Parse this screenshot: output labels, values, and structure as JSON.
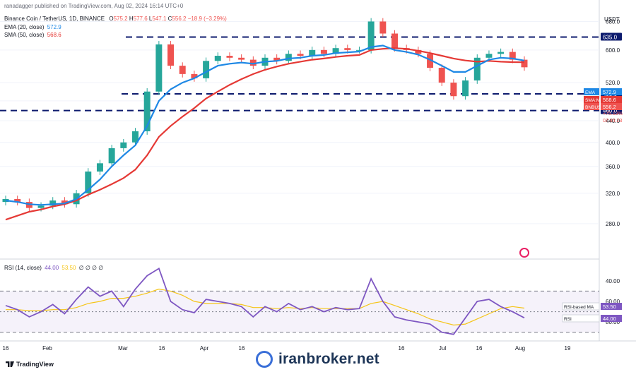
{
  "header": {
    "author_line": "ranadagger published on TradingView.com, Aug 02, 2024 16:14 UTC+0",
    "symbol": "Binance Coin / TetherUS, 1D, BINANCE",
    "ohlc": {
      "o_label": "O",
      "o": "575.2",
      "h_label": "H",
      "h": "577.6",
      "l_label": "L",
      "l": "547.1",
      "c_label": "C",
      "c": "556.2",
      "change": "−18.9 (−3.29%)"
    },
    "ema_label": "EMA (20, close)",
    "ema_value": "572.9",
    "sma_label": "SMA (50, close)",
    "sma_value": "568.6",
    "rsi_label": "RSI (14, close)",
    "rsi_value": "44.00",
    "rsi_ma_value": "53.50",
    "rsi_extra": "∅ ∅ ∅ ∅"
  },
  "currency": "USDT",
  "price_axis": {
    "ticks": [
      "680.0",
      "600.0",
      "520.0",
      "480.0",
      "440.0",
      "400.0",
      "360.0",
      "320.0",
      "280.0"
    ]
  },
  "level_tags": [
    "635.0",
    "495.0",
    "460.0"
  ],
  "right_tags": {
    "ema": {
      "label": "EMA",
      "value": "572.9",
      "color": "#1e88e5"
    },
    "sma": {
      "label": "SMA:MA",
      "value": "568.6",
      "color": "#e53935"
    },
    "symbol": {
      "label": "BNBUSDT",
      "value": "556.2",
      "color": "#ef5350",
      "change": "+75.13%",
      "countdown": "07:45:23"
    }
  },
  "rsi_axis": {
    "ticks": [
      "80.00",
      "60.00",
      "40.00"
    ],
    "tags": [
      {
        "label": "RSI-based MA",
        "value": "53.50"
      },
      {
        "label": "RSI",
        "value": "44.00"
      }
    ]
  },
  "time_axis": {
    "labels": [
      "16",
      "Feb",
      "Mar",
      "16",
      "Apr",
      "16",
      "16",
      "Jul",
      "16",
      "Aug",
      "19"
    ]
  },
  "footer": {
    "brand": "TradingView",
    "watermark": "iranbroker.net"
  },
  "colors": {
    "up": "#26a69a",
    "down": "#ef5350",
    "ema": "#1e88e5",
    "sma": "#e53935",
    "rsi": "#7e57c2",
    "rsi_ma": "#f5c518",
    "levels": "#0d1b6e"
  },
  "chart_data": [
    {
      "type": "candlestick",
      "title": "Binance Coin / TetherUS, 1D, BINANCE",
      "ylabel": "USDT",
      "ylim": [
        245,
        720
      ],
      "yticks": [
        280,
        320,
        360,
        400,
        440,
        480,
        520,
        600,
        680
      ],
      "horizontal_levels": [
        635,
        495,
        460
      ],
      "x": [
        "Jan-06",
        "Jan-10",
        "Jan-15",
        "Jan-20",
        "Jan-25",
        "Feb-01",
        "Feb-07",
        "Feb-14",
        "Feb-20",
        "Feb-26",
        "Mar-01",
        "Mar-05",
        "Mar-08",
        "Mar-12",
        "Mar-16",
        "Mar-20",
        "Mar-25",
        "Apr-01",
        "Apr-06",
        "Apr-10",
        "Apr-15",
        "Apr-20",
        "Apr-25",
        "May-01",
        "May-06",
        "May-10",
        "May-15",
        "May-20",
        "May-25",
        "Jun-01",
        "Jun-05",
        "Jun-08",
        "Jun-12",
        "Jun-17",
        "Jun-21",
        "Jun-25",
        "Jul-01",
        "Jul-05",
        "Jul-08",
        "Jul-12",
        "Jul-16",
        "Jul-20",
        "Jul-25",
        "Jul-29",
        "Aug-02"
      ],
      "series": [
        {
          "name": "BNBUSDT close",
          "values": [
            312,
            308,
            300,
            303,
            310,
            305,
            320,
            352,
            365,
            390,
            400,
            420,
            500,
            615,
            560,
            540,
            530,
            572,
            585,
            580,
            575,
            560,
            580,
            572,
            590,
            585,
            600,
            590,
            605,
            600,
            600,
            680,
            645,
            605,
            600,
            590,
            555,
            520,
            490,
            525,
            580,
            590,
            595,
            575,
            556.2
          ]
        },
        {
          "name": "EMA (20, close)",
          "values": [
            310,
            308,
            305,
            304,
            305,
            306,
            312,
            325,
            340,
            360,
            378,
            395,
            430,
            480,
            505,
            520,
            530,
            545,
            560,
            565,
            568,
            565,
            570,
            572,
            578,
            580,
            585,
            587,
            592,
            594,
            596,
            608,
            612,
            600,
            595,
            588,
            575,
            560,
            545,
            545,
            560,
            575,
            580,
            578,
            572.9
          ]
        },
        {
          "name": "SMA (50, close)",
          "values": [
            285,
            290,
            295,
            298,
            302,
            305,
            310,
            318,
            325,
            333,
            342,
            355,
            378,
            410,
            430,
            448,
            465,
            485,
            500,
            515,
            528,
            540,
            550,
            558,
            565,
            570,
            575,
            578,
            582,
            585,
            587,
            600,
            603,
            605,
            603,
            598,
            592,
            585,
            578,
            573,
            570,
            572,
            570,
            569,
            568.6
          ]
        }
      ]
    },
    {
      "type": "line",
      "title": "RSI (14, close)",
      "ylim": [
        25,
        95
      ],
      "yticks": [
        40,
        60,
        80
      ],
      "bands": [
        30,
        70
      ],
      "x": [
        "Jan-06",
        "Jan-10",
        "Jan-15",
        "Jan-20",
        "Jan-25",
        "Feb-01",
        "Feb-07",
        "Feb-14",
        "Feb-20",
        "Feb-26",
        "Mar-01",
        "Mar-05",
        "Mar-08",
        "Mar-12",
        "Mar-16",
        "Mar-20",
        "Mar-25",
        "Apr-01",
        "Apr-06",
        "Apr-10",
        "Apr-15",
        "Apr-20",
        "Apr-25",
        "May-01",
        "May-06",
        "May-10",
        "May-15",
        "May-20",
        "May-25",
        "Jun-01",
        "Jun-05",
        "Jun-08",
        "Jun-12",
        "Jun-17",
        "Jun-21",
        "Jun-25",
        "Jul-01",
        "Jul-05",
        "Jul-08",
        "Jul-12",
        "Jul-16",
        "Jul-20",
        "Jul-25",
        "Jul-29",
        "Aug-02"
      ],
      "series": [
        {
          "name": "RSI",
          "values": [
            56,
            52,
            45,
            50,
            57,
            48,
            62,
            74,
            65,
            70,
            55,
            72,
            85,
            92,
            60,
            52,
            49,
            62,
            60,
            58,
            55,
            45,
            55,
            50,
            58,
            52,
            55,
            50,
            54,
            52,
            53,
            82,
            60,
            45,
            42,
            40,
            38,
            30,
            28,
            44,
            60,
            62,
            55,
            50,
            44
          ]
        },
        {
          "name": "RSI-based MA",
          "values": [
            52,
            52,
            51,
            51,
            52,
            52,
            54,
            58,
            60,
            63,
            63,
            65,
            68,
            72,
            70,
            66,
            60,
            58,
            58,
            58,
            57,
            54,
            54,
            53,
            54,
            53,
            54,
            53,
            53,
            53,
            53,
            58,
            60,
            56,
            52,
            48,
            43,
            40,
            37,
            38,
            43,
            48,
            53,
            55,
            53.5
          ]
        }
      ]
    }
  ]
}
